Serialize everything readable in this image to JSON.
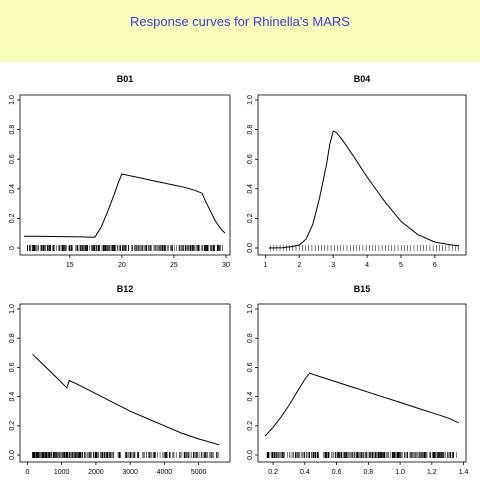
{
  "header": {
    "title": "Response curves for Rhinella's MARS",
    "background": "#f8fcb8",
    "title_color": "#3b3be8"
  },
  "chart_data": [
    {
      "type": "line",
      "title": "B01",
      "xlabel": "",
      "ylabel": "",
      "xlim": [
        10.6,
        30.0
      ],
      "ylim": [
        0,
        1.0
      ],
      "xticks": [
        15,
        20,
        25,
        30
      ],
      "xtick_labels": [
        "15",
        "20",
        "25",
        "30"
      ],
      "yticks": [
        0,
        0.2,
        0.4,
        0.6,
        0.8,
        1.0
      ],
      "ytick_labels": [
        "0",
        "0.2",
        "0.4",
        "0.6",
        "0.8",
        "1.0"
      ],
      "x": [
        10.6,
        12.0,
        14.0,
        16.0,
        17.4,
        18.0,
        18.6,
        19.2,
        19.7,
        20.0,
        21.0,
        22.0,
        23.0,
        24.0,
        25.0,
        26.0,
        27.0,
        27.7,
        28.0,
        28.5,
        29.0,
        29.5,
        29.9
      ],
      "y": [
        0.08,
        0.079,
        0.077,
        0.075,
        0.073,
        0.14,
        0.24,
        0.35,
        0.45,
        0.5,
        0.485,
        0.47,
        0.455,
        0.44,
        0.425,
        0.41,
        0.39,
        0.37,
        0.32,
        0.25,
        0.18,
        0.13,
        0.1
      ],
      "rug": {
        "from": 10.9,
        "to": 29.7,
        "dense": true
      }
    },
    {
      "type": "line",
      "title": "B04",
      "xlabel": "",
      "ylabel": "",
      "xlim": [
        0.9,
        6.8
      ],
      "ylim": [
        0,
        1.0
      ],
      "xticks": [
        1,
        2,
        3,
        4,
        5,
        6
      ],
      "xtick_labels": [
        "1",
        "2",
        "3",
        "4",
        "5",
        "6"
      ],
      "yticks": [
        0,
        0.2,
        0.4,
        0.6,
        0.8,
        1.0
      ],
      "ytick_labels": [
        "0.0",
        "0.2",
        "0.4",
        "0.6",
        "0.8",
        "1.0"
      ],
      "x": [
        1.1,
        1.5,
        1.8,
        2.0,
        2.2,
        2.4,
        2.6,
        2.8,
        2.9,
        3.0,
        3.1,
        3.3,
        3.6,
        4.0,
        4.5,
        5.0,
        5.5,
        6.0,
        6.5,
        6.7
      ],
      "y": [
        0.0,
        0.002,
        0.01,
        0.02,
        0.06,
        0.16,
        0.34,
        0.56,
        0.7,
        0.79,
        0.78,
        0.72,
        0.62,
        0.48,
        0.32,
        0.18,
        0.09,
        0.04,
        0.02,
        0.015
      ],
      "rug": {
        "from": 1.15,
        "to": 6.7,
        "dense": false
      }
    },
    {
      "type": "line",
      "title": "B12",
      "xlabel": "",
      "ylabel": "",
      "xlim": [
        -100,
        5800
      ],
      "ylim": [
        0,
        1.0
      ],
      "xticks": [
        0,
        1000,
        2000,
        3000,
        4000,
        5000
      ],
      "xtick_labels": [
        "0",
        "1000",
        "2000",
        "3000",
        "4000",
        "5000"
      ],
      "yticks": [
        0,
        0.2,
        0.4,
        0.6,
        0.8,
        1.0
      ],
      "ytick_labels": [
        "0.0",
        "0.2",
        "0.4",
        "0.6",
        "0.8",
        "1.0"
      ],
      "x": [
        150,
        500,
        900,
        1150,
        1220,
        1500,
        2000,
        2500,
        3000,
        3500,
        4000,
        4500,
        5000,
        5600
      ],
      "y": [
        0.69,
        0.61,
        0.52,
        0.46,
        0.51,
        0.48,
        0.42,
        0.36,
        0.3,
        0.25,
        0.2,
        0.15,
        0.11,
        0.07
      ],
      "rug": {
        "from": 150,
        "to": 5600,
        "dense": true
      }
    },
    {
      "type": "line",
      "title": "B15",
      "xlabel": "",
      "ylabel": "",
      "xlim": [
        0.13,
        1.39
      ],
      "ylim": [
        0,
        1.0
      ],
      "xticks": [
        0.2,
        0.4,
        0.6,
        0.8,
        1.0,
        1.2,
        1.4
      ],
      "xtick_labels": [
        "0.2",
        "0.4",
        "0.6",
        "0.8",
        "1.0",
        "1.2",
        "1.4"
      ],
      "yticks": [
        0,
        0.2,
        0.4,
        0.6,
        0.8,
        1.0
      ],
      "ytick_labels": [
        "0.0",
        "0.2",
        "0.4",
        "0.6",
        "0.8",
        "1.0"
      ],
      "x": [
        0.15,
        0.2,
        0.25,
        0.3,
        0.35,
        0.4,
        0.43,
        0.5,
        0.6,
        0.7,
        0.8,
        0.9,
        1.0,
        1.1,
        1.2,
        1.3,
        1.37
      ],
      "y": [
        0.13,
        0.19,
        0.26,
        0.34,
        0.43,
        0.52,
        0.56,
        0.535,
        0.5,
        0.465,
        0.43,
        0.395,
        0.36,
        0.325,
        0.29,
        0.255,
        0.22
      ],
      "rug": {
        "from": 0.16,
        "to": 1.36,
        "dense": true
      }
    }
  ]
}
